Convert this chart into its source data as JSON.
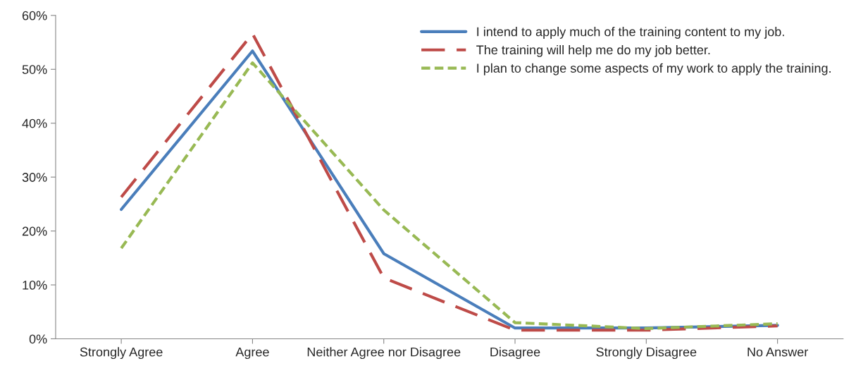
{
  "chart_data": {
    "type": "line",
    "categories": [
      "Strongly Agree",
      "Agree",
      "Neither Agree nor Disagree",
      "Disagree",
      "Strongly Disagree",
      "No Answer"
    ],
    "series": [
      {
        "name": "I intend to apply much of the training content to my job.",
        "color": "#4a7ebb",
        "line_style": "solid",
        "values": [
          24,
          53.4,
          15.8,
          2.0,
          2.0,
          2.5
        ]
      },
      {
        "name": "The training will help me do my job better.",
        "color": "#be4b48",
        "line_style": "dashed",
        "values": [
          26.3,
          56.6,
          11.3,
          1.6,
          1.6,
          2.4
        ]
      },
      {
        "name": "I plan to change some aspects of my work to apply the training.",
        "color": "#98b954",
        "line_style": "dotted",
        "values": [
          16.8,
          51.2,
          23.9,
          3.0,
          1.9,
          2.8
        ]
      }
    ],
    "ylim": [
      0,
      60
    ],
    "yticks": [
      {
        "value": 0,
        "label": "0%"
      },
      {
        "value": 10,
        "label": "10%"
      },
      {
        "value": 20,
        "label": "20%"
      },
      {
        "value": 30,
        "label": "30%"
      },
      {
        "value": 40,
        "label": "40%"
      },
      {
        "value": 50,
        "label": "50%"
      },
      {
        "value": 60,
        "label": "60%"
      }
    ],
    "grid": false,
    "legend": "top right",
    "marker": "none"
  }
}
